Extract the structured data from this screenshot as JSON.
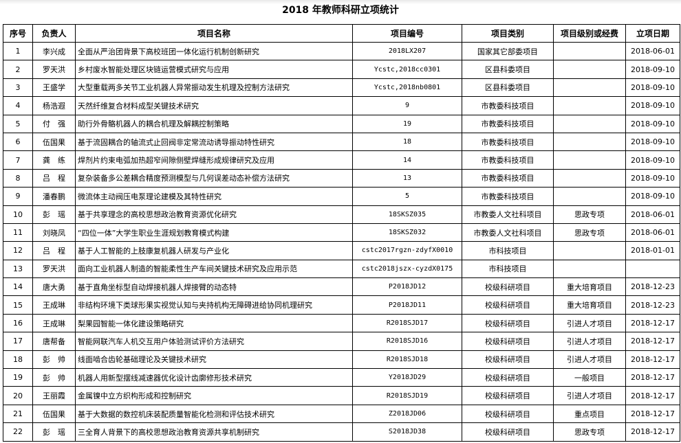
{
  "title": "2018 年教师科研立项统计",
  "table": {
    "header": [
      "序号",
      "负责人",
      "项目名称",
      "项目编号",
      "项目类别",
      "项目级别或经费",
      "立项日期"
    ],
    "rows": [
      [
        "1",
        "李兴成",
        "全面从严治团背景下高校班团一体化运行机制创新研究",
        "2018LX207",
        "国家其它部委项目",
        null,
        "2018-06-01"
      ],
      [
        "2",
        "罗天洪",
        "乡村废水智能处理区块链运营模式研究与应用",
        "Ycstc,2018cc0301",
        "区县科委项目",
        null,
        "2018-09-10"
      ],
      [
        "3",
        "王盛学",
        "大型重载两多关节工业机器人异常振动发生机理及控制方法研究",
        "Ycstc,2018nb0801",
        "区县科委项目",
        null,
        "2018-09-10"
      ],
      [
        "4",
        "杨浩遐",
        "天然纤维复合材料成型关键技术研究",
        "9",
        "市教委科技项目",
        null,
        "2018-09-10"
      ],
      [
        "5",
        "付　强",
        "助行外骨骼机器人的耦合机理及解耦控制策略",
        "19",
        "市教委科技项目",
        null,
        "2018-09-10"
      ],
      [
        "6",
        "伍国果",
        "基于流固耦合的轴流式止回阀非定常流动诱导振动特性研究",
        "18",
        "市教委科技项目",
        null,
        "2018-09-10"
      ],
      [
        "7",
        "龚　练",
        "焊剂片约束电弧加热超窄间隙侧壁焊缝形成规律研究及应用",
        "14",
        "市教委科技项目",
        null,
        "2018-09-10"
      ],
      [
        "8",
        "吕　程",
        "复杂装备多公差耦合精度预测模型与几何误差动态补偿方法研究",
        "13",
        "市教委科技项目",
        null,
        "2018-09-10"
      ],
      [
        "9",
        "潘春鹏",
        "微流体主动阀压电泵理论建模及其特性研究",
        "5",
        "市教委科技项目",
        null,
        "2018-09-10"
      ],
      [
        "10",
        "彭　瑶",
        "基于共享理念的高校思想政治教育资源优化研究",
        "18SKSZ035",
        "市教委人文社科项目",
        "思政专项",
        "2018-06-01"
      ],
      [
        "11",
        "刘晓凤",
        "“四位一体”大学生职业生涯规划教育模式构建",
        "18SKSZ032",
        "市教委人文社科项目",
        "思政专项",
        "2018-06-01"
      ],
      [
        "12",
        "吕　程",
        "基于人工智能的上肢康复机器人研发与产业化",
        "cstc2017rgzn-zdyfX0010",
        "市科技项目",
        null,
        "2018-01-01"
      ],
      [
        "13",
        "罗天洪",
        "面向工业机器人制造的智能柔性生产车间关键技术研究及应用示范",
        "cstc2018jszx-cyzdX0175",
        "市科技项目",
        null,
        null
      ],
      [
        "14",
        "唐大勇",
        "基于直角坐标型自动焊接机器人焊接臂的动态特",
        "P2018JD12",
        "校级科研项目",
        "重大培育项目",
        "2018-12-23"
      ],
      [
        "15",
        "王成琳",
        "非结构环境下类球形果实视觉认知与夹持机构无障碍进给协同机理研究",
        "P2018JD11",
        "校级科研项目",
        "重大培育项目",
        "2018-12-23"
      ],
      [
        "16",
        "王成琳",
        "梨果园智能一体化建设策略研究",
        "R2018SJD17",
        "校级科研项目",
        "引进人才项目",
        "2018-12-17"
      ],
      [
        "17",
        "唐帮备",
        "智能网联汽车人机交互用户体验测试评价方法研究",
        "R2018SJD16",
        "校级科研项目",
        "引进人才项目",
        "2018-12-17"
      ],
      [
        "18",
        "彭　帅",
        "线面啮合齿轮基础理论及关键技术研究",
        "R2018SJD18",
        "校级科研项目",
        "引进人才项目",
        "2018-12-17"
      ],
      [
        "19",
        "彭　帅",
        "机器人用新型摆线减速器优化设计齿廓修形技术研究",
        "Y2018JD29",
        "校级科研项目",
        "一般项目",
        "2018-12-17"
      ],
      [
        "20",
        "王丽霞",
        "金属镍中立方织构形成和控制研究",
        "R2018SJD19",
        "校级科研项目",
        "引进人才项目",
        "2018-12-17"
      ],
      [
        "21",
        "伍国果",
        "基于大数据的数控机床装配质量智能化检测和评估技术研究",
        "Z2018JD06",
        "校级科研项目",
        "重点项目",
        "2018-12-17"
      ],
      [
        "22",
        "彭　瑶",
        "三全育人背景下的高校思想政治教育资源共享机制研究",
        "S2018JD38",
        "校级科研项目",
        "思政专项",
        "2018-12-17"
      ]
    ]
  }
}
